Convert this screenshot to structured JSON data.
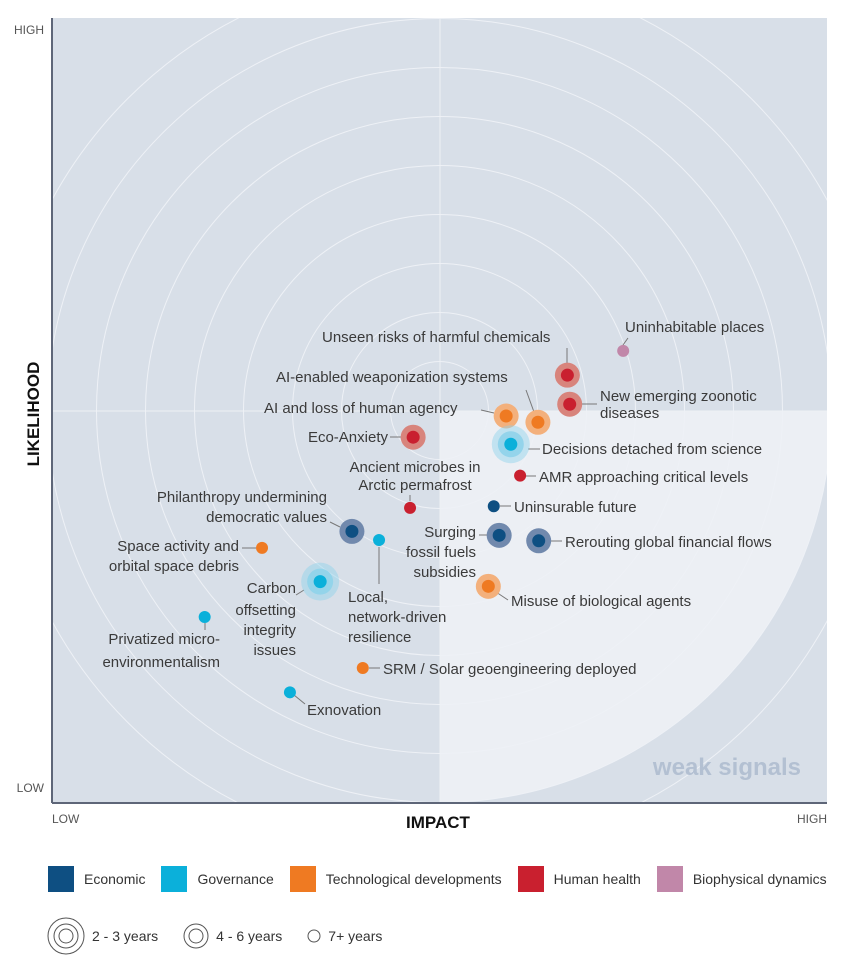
{
  "chart_data": {
    "type": "scatter",
    "title": "",
    "xlabel": "IMPACT",
    "ylabel": "LIKELIHOOD",
    "x_range_labels": [
      "LOW",
      "HIGH"
    ],
    "y_range_labels": [
      "LOW",
      "HIGH"
    ],
    "xlim": [
      0,
      1
    ],
    "ylim": [
      0,
      1
    ],
    "grid": "concentric rings centered at (0.5, 0.5)",
    "zone_label": "weak signals",
    "categories": [
      {
        "key": "economic",
        "name": "Economic",
        "color": "#0e4f82",
        "halo": "#7189ad"
      },
      {
        "key": "governance",
        "name": "Governance",
        "color": "#0bb0da",
        "halo": "#8fd3ea"
      },
      {
        "key": "tech",
        "name": "Technological developments",
        "color": "#ef7a22",
        "halo": "#f3b07c"
      },
      {
        "key": "health",
        "name": "Human health",
        "color": "#c9202f",
        "halo": "#d8847c"
      },
      {
        "key": "bio",
        "name": "Biophysical dynamics",
        "color": "#c187a9",
        "halo": "#d9b5ca"
      }
    ],
    "durations": [
      {
        "key": "2-3",
        "name": "2 - 3 years"
      },
      {
        "key": "4-6",
        "name": "4 - 6 years"
      },
      {
        "key": "7+",
        "name": "7+ years"
      }
    ],
    "points": [
      {
        "label": "Unseen risks of harmful chemicals",
        "category": "health",
        "duration": "4-6",
        "impact": 0.665,
        "likelihood": 0.545
      },
      {
        "label": "Uninhabitable places",
        "category": "bio",
        "duration": "7+",
        "impact": 0.737,
        "likelihood": 0.576
      },
      {
        "label": "AI-enabled weaponization systems",
        "category": "tech",
        "duration": "4-6",
        "impact": 0.627,
        "likelihood": 0.485
      },
      {
        "label": "New emerging zoonotic diseases",
        "category": "health",
        "duration": "4-6",
        "impact": 0.668,
        "likelihood": 0.508
      },
      {
        "label": "AI and loss of human agency",
        "category": "tech",
        "duration": "4-6",
        "impact": 0.586,
        "likelihood": 0.493
      },
      {
        "label": "Eco-Anxiety",
        "category": "health",
        "duration": "4-6",
        "impact": 0.466,
        "likelihood": 0.466
      },
      {
        "label": "Decisions detached from science",
        "category": "governance",
        "duration": "2-3",
        "impact": 0.592,
        "likelihood": 0.457
      },
      {
        "label": "AMR approaching critical levels",
        "category": "health",
        "duration": "7+",
        "impact": 0.604,
        "likelihood": 0.417
      },
      {
        "label": "Ancient microbes in Arctic permafrost",
        "category": "health",
        "duration": "7+",
        "impact": 0.462,
        "likelihood": 0.376
      },
      {
        "label": "Uninsurable future",
        "category": "economic",
        "duration": "7+",
        "impact": 0.57,
        "likelihood": 0.378
      },
      {
        "label": "Philanthropy undermining democratic values",
        "category": "economic",
        "duration": "4-6",
        "impact": 0.387,
        "likelihood": 0.346
      },
      {
        "label": "Local, network-driven resilience",
        "category": "governance",
        "duration": "7+",
        "impact": 0.422,
        "likelihood": 0.335
      },
      {
        "label": "Surging fossil fuels subsidies",
        "category": "economic",
        "duration": "4-6",
        "impact": 0.577,
        "likelihood": 0.341
      },
      {
        "label": "Rerouting global financial flows",
        "category": "economic",
        "duration": "4-6",
        "impact": 0.628,
        "likelihood": 0.334
      },
      {
        "label": "Space activity and orbital space debris",
        "category": "tech",
        "duration": "7+",
        "impact": 0.271,
        "likelihood": 0.325
      },
      {
        "label": "Carbon offsetting integrity issues",
        "category": "governance",
        "duration": "2-3",
        "impact": 0.346,
        "likelihood": 0.282
      },
      {
        "label": "Misuse of biological agents",
        "category": "tech",
        "duration": "4-6",
        "impact": 0.563,
        "likelihood": 0.276
      },
      {
        "label": "Privatized micro-environmentalism",
        "category": "governance",
        "duration": "7+",
        "impact": 0.197,
        "likelihood": 0.237
      },
      {
        "label": "SRM / Solar geoengineering deployed",
        "category": "tech",
        "duration": "7+",
        "impact": 0.401,
        "likelihood": 0.172
      },
      {
        "label": "Exnovation",
        "category": "governance",
        "duration": "7+",
        "impact": 0.307,
        "likelihood": 0.141
      }
    ]
  }
}
